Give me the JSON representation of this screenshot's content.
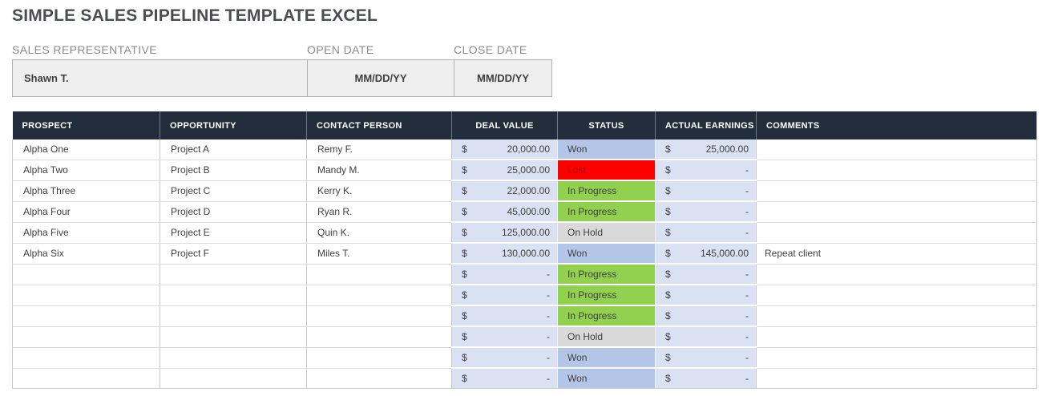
{
  "title": "SIMPLE SALES PIPELINE TEMPLATE EXCEL",
  "info": {
    "fields": [
      {
        "label": "SALES REPRESENTATIVE",
        "value": "Shawn T."
      },
      {
        "label": "OPEN DATE",
        "value": "MM/DD/YY"
      },
      {
        "label": "CLOSE DATE",
        "value": "MM/DD/YY"
      }
    ]
  },
  "table": {
    "columns": [
      {
        "label": "PROSPECT",
        "align": "left"
      },
      {
        "label": "OPPORTUNITY",
        "align": "left"
      },
      {
        "label": "CONTACT PERSON",
        "align": "left"
      },
      {
        "label": "DEAL VALUE",
        "align": "center"
      },
      {
        "label": "STATUS",
        "align": "center"
      },
      {
        "label": "ACTUAL EARNINGS",
        "align": "center"
      },
      {
        "label": "COMMENTS",
        "align": "left"
      }
    ],
    "currency_symbol": "$",
    "empty_amount": "-",
    "rows": [
      {
        "prospect": "Alpha One",
        "opportunity": "Project A",
        "contact_person": "Remy F.",
        "deal_value": "20,000.00",
        "status": "Won",
        "actual_earnings": "25,000.00",
        "comments": ""
      },
      {
        "prospect": "Alpha Two",
        "opportunity": "Project B",
        "contact_person": "Mandy M.",
        "deal_value": "25,000.00",
        "status": "Lost",
        "actual_earnings": "-",
        "comments": ""
      },
      {
        "prospect": "Alpha Three",
        "opportunity": "Project C",
        "contact_person": "Kerry K.",
        "deal_value": "22,000.00",
        "status": "In Progress",
        "actual_earnings": "-",
        "comments": ""
      },
      {
        "prospect": "Alpha Four",
        "opportunity": "Project D",
        "contact_person": "Ryan R.",
        "deal_value": "45,000.00",
        "status": "In Progress",
        "actual_earnings": "-",
        "comments": ""
      },
      {
        "prospect": "Alpha Five",
        "opportunity": "Project E",
        "contact_person": "Quin K.",
        "deal_value": "125,000.00",
        "status": "On Hold",
        "actual_earnings": "-",
        "comments": ""
      },
      {
        "prospect": "Alpha Six",
        "opportunity": "Project F",
        "contact_person": "Miles T.",
        "deal_value": "130,000.00",
        "status": "Won",
        "actual_earnings": "145,000.00",
        "comments": "Repeat client"
      },
      {
        "prospect": "",
        "opportunity": "",
        "contact_person": "",
        "deal_value": "-",
        "status": "In Progress",
        "actual_earnings": "-",
        "comments": ""
      },
      {
        "prospect": "",
        "opportunity": "",
        "contact_person": "",
        "deal_value": "-",
        "status": "In Progress",
        "actual_earnings": "-",
        "comments": ""
      },
      {
        "prospect": "",
        "opportunity": "",
        "contact_person": "",
        "deal_value": "-",
        "status": "In Progress",
        "actual_earnings": "-",
        "comments": ""
      },
      {
        "prospect": "",
        "opportunity": "",
        "contact_person": "",
        "deal_value": "-",
        "status": "On Hold",
        "actual_earnings": "-",
        "comments": ""
      },
      {
        "prospect": "",
        "opportunity": "",
        "contact_person": "",
        "deal_value": "-",
        "status": "Won",
        "actual_earnings": "-",
        "comments": ""
      },
      {
        "prospect": "",
        "opportunity": "",
        "contact_person": "",
        "deal_value": "-",
        "status": "Won",
        "actual_earnings": "-",
        "comments": ""
      }
    ],
    "status_styles": {
      "Won": {
        "bg": "#b4c6e7",
        "text": "#404040"
      },
      "Lost": {
        "bg": "#ff0000",
        "text": "#9c0006"
      },
      "In Progress": {
        "bg": "#92d050",
        "text": "#404040"
      },
      "On Hold": {
        "bg": "#d9d9d9",
        "text": "#404040"
      }
    }
  },
  "colors": {
    "header_bg": "#222e3c",
    "header_text": "#ffffff",
    "money_cell_bg": "#d9e1f2",
    "status_won": "#b4c6e7",
    "status_lost": "#ff0000",
    "status_in_progress": "#92d050",
    "status_on_hold": "#d9d9d9"
  }
}
